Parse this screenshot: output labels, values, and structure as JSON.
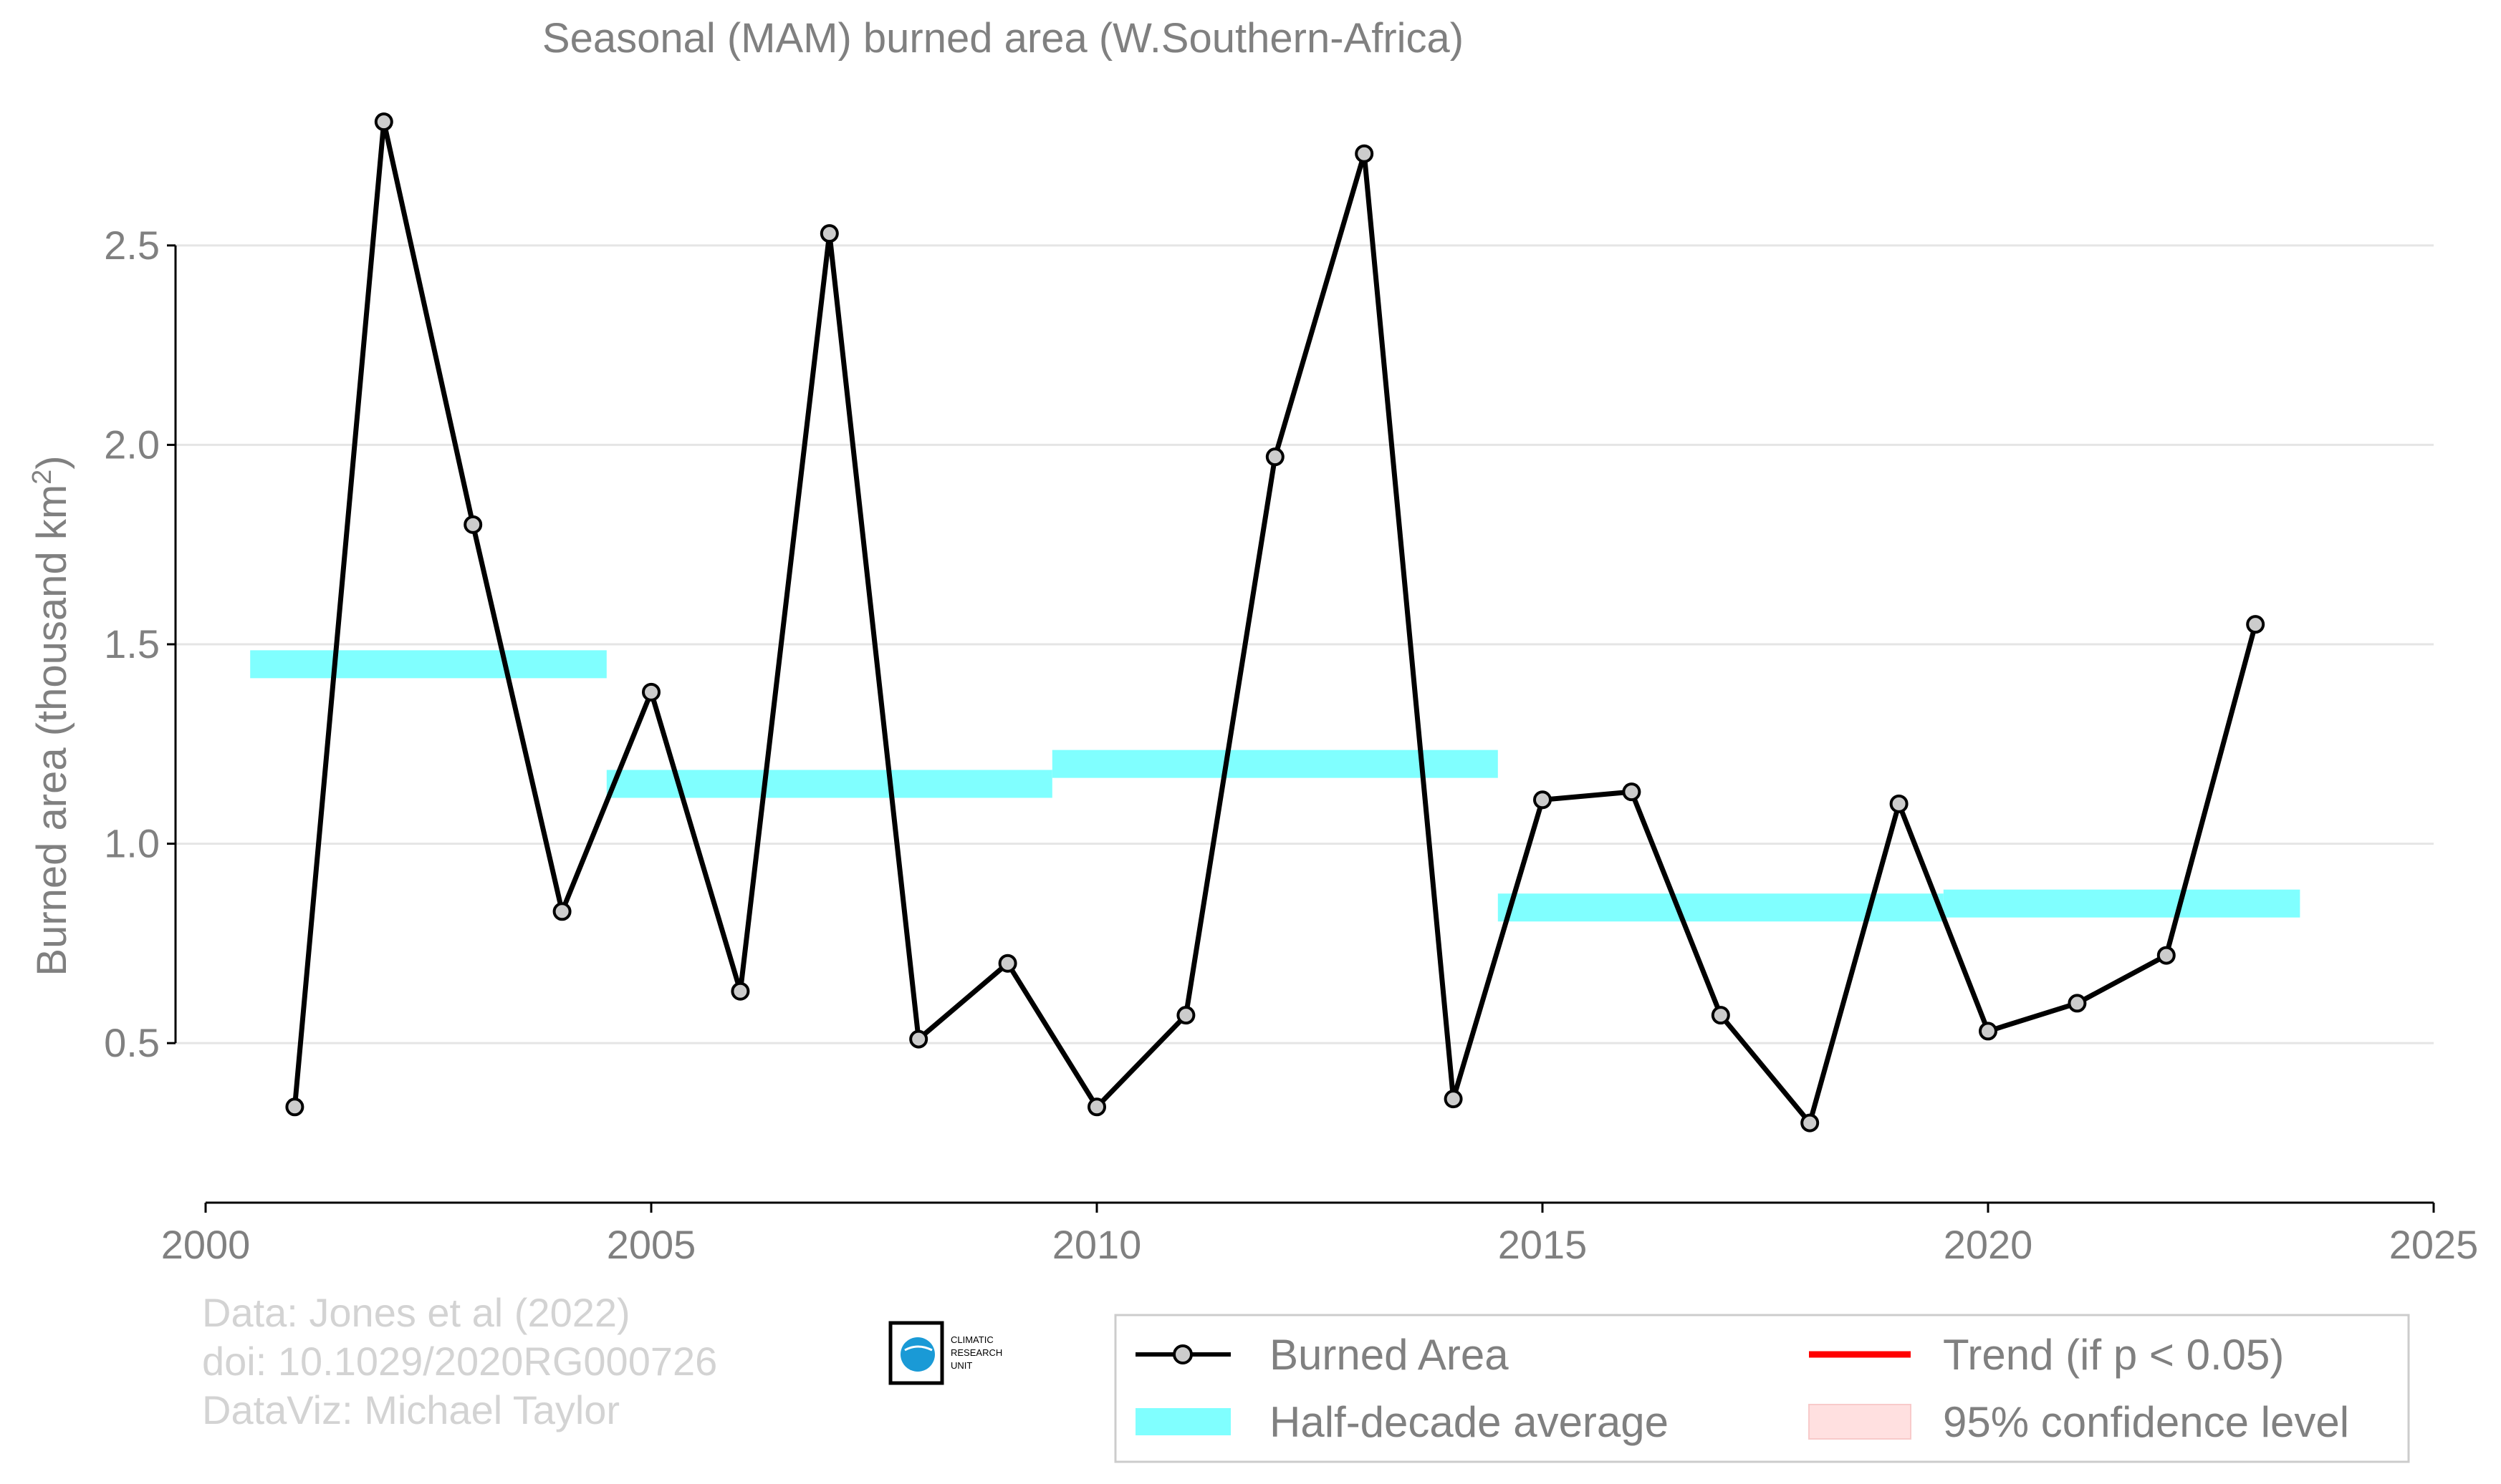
{
  "chart_data": {
    "type": "line",
    "title": "Seasonal (MAM) burned area (W.Southern-Africa)",
    "xlabel": "",
    "ylabel": "Burned area (thousand km",
    "ylabel_superscript": "2",
    "ylabel_close": ")",
    "xlim": [
      2000,
      2025
    ],
    "ylim": [
      0.1,
      2.9
    ],
    "x_ticks": [
      2000,
      2005,
      2010,
      2015,
      2020,
      2025
    ],
    "y_ticks": [
      0.5,
      1.0,
      1.5,
      2.0,
      2.5
    ],
    "y_tick_labels": [
      "0.5",
      "1.0",
      "1.5",
      "2.0",
      "2.5"
    ],
    "grid": "horizontal",
    "legend_position": "bottom-right",
    "series": [
      {
        "name": "Burned Area",
        "x": [
          2001,
          2002,
          2003,
          2004,
          2005,
          2006,
          2007,
          2008,
          2009,
          2010,
          2011,
          2012,
          2013,
          2014,
          2015,
          2016,
          2017,
          2018,
          2019,
          2020,
          2021,
          2022,
          2023
        ],
        "values": [
          0.34,
          2.81,
          1.8,
          0.83,
          1.38,
          0.63,
          2.53,
          0.51,
          0.7,
          0.34,
          0.57,
          1.97,
          2.73,
          0.36,
          1.11,
          1.13,
          0.57,
          0.3,
          1.1,
          0.53,
          0.6,
          0.72,
          1.55
        ],
        "color": "#000000",
        "marker_fill": "#cccccc"
      }
    ],
    "half_decade_average": {
      "name": "Half-decade average",
      "color": "#80ffff",
      "segments": [
        {
          "x_start": 2000.5,
          "x_end": 2004.5,
          "value": 1.45
        },
        {
          "x_start": 2004.5,
          "x_end": 2009.5,
          "value": 1.15
        },
        {
          "x_start": 2009.5,
          "x_end": 2014.5,
          "value": 1.2
        },
        {
          "x_start": 2014.5,
          "x_end": 2019.5,
          "value": 0.84
        },
        {
          "x_start": 2019.5,
          "x_end": 2023.5,
          "value": 0.85
        }
      ]
    },
    "legend": [
      {
        "label": "Burned Area",
        "kind": "line-marker",
        "color": "#000000"
      },
      {
        "label": "Trend (if p < 0.05)",
        "kind": "line",
        "color": "#ff0000"
      },
      {
        "label": "Half-decade average",
        "kind": "band",
        "color": "#80ffff"
      },
      {
        "label": "95% confidence level",
        "kind": "band",
        "color": "#ffe0e0"
      }
    ],
    "credits": [
      "Data: Jones et al (2022)",
      "doi: 10.1029/2020RG000726",
      "DataViz: Michael Taylor"
    ],
    "logo_text": [
      "CLIMATIC",
      "RESEARCH",
      "UNIT"
    ]
  }
}
